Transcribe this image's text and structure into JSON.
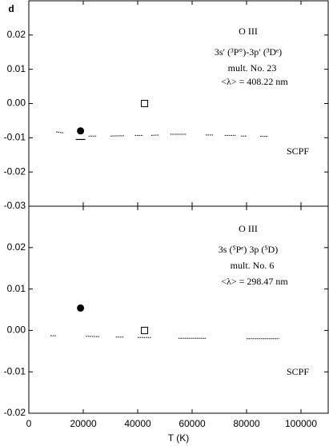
{
  "chart_data": [
    {
      "type": "scatter-line",
      "ylabel": "d",
      "xlim": [
        0,
        110000
      ],
      "xticks": [
        0,
        20000,
        40000,
        60000,
        80000,
        100000
      ],
      "ylim": [
        -0.03,
        0.03
      ],
      "yticks": [
        -0.03,
        -0.02,
        -0.01,
        {
          "value": 0,
          "label": "0.00"
        },
        0.01,
        0.02
      ],
      "annotations": [
        "O III",
        "3s′ (³P°)-3p′ (³Dᵉ)",
        "mult. No. 23",
        "<λ> = 408.22 nm"
      ],
      "series": [
        {
          "marker": "circle",
          "color": "#000",
          "x": [
            19000
          ],
          "values": [
            -0.008
          ]
        },
        {
          "marker": "dash",
          "color": "#000",
          "x": [
            19000
          ],
          "values": [
            -0.0105
          ]
        },
        {
          "marker": "square",
          "color": "#000",
          "x": [
            42500
          ],
          "values": [
            0.0
          ]
        },
        {
          "name": "SCPF",
          "marker": "dotted",
          "color": "#000",
          "x": [
            10000,
            13000,
            13000,
            22000,
            25000,
            25000,
            30000,
            35000,
            35000,
            39000,
            42000,
            42000,
            45000,
            48000,
            48000,
            52000,
            58000,
            58000,
            65000,
            68000,
            68000,
            72000,
            76000,
            76000,
            78000,
            80000,
            80000,
            85000,
            88000
          ],
          "values": [
            -0.0083,
            -0.0086,
            null,
            -0.0095,
            -0.0095,
            null,
            -0.0095,
            -0.0094,
            null,
            -0.0093,
            -0.0093,
            null,
            -0.0093,
            -0.0092,
            null,
            -0.009,
            -0.009,
            null,
            -0.0092,
            -0.0092,
            null,
            -0.0093,
            -0.0093,
            null,
            -0.0095,
            -0.0095,
            null,
            -0.0096,
            -0.0096
          ]
        }
      ]
    },
    {
      "type": "scatter-line",
      "xlabel": "T (K)",
      "xlim": [
        0,
        110000
      ],
      "xticks": [
        0,
        20000,
        40000,
        60000,
        80000,
        100000
      ],
      "ylim": [
        -0.02,
        0.03
      ],
      "yticks": [
        -0.02,
        -0.01,
        {
          "value": 0,
          "label": "0.00"
        },
        0.01,
        0.02
      ],
      "annotations": [
        "O III",
        "3s (⁵Pᵉ) 3p (⁵D)",
        "mult. No. 6",
        "<λ> = 298.47 nm"
      ],
      "series": [
        {
          "marker": "circle",
          "color": "#000",
          "x": [
            19000
          ],
          "values": [
            0.0054
          ]
        },
        {
          "marker": "square",
          "color": "#000",
          "x": [
            42500
          ],
          "values": [
            0.0
          ]
        },
        {
          "name": "SCPF",
          "marker": "dotted",
          "color": "#000",
          "x": [
            8000,
            10000,
            10000,
            21000,
            26000,
            26000,
            32000,
            35000,
            35000,
            40000,
            45000,
            45000,
            55000,
            65000,
            65000,
            80000,
            92000
          ],
          "values": [
            -0.0013,
            -0.0013,
            null,
            -0.0014,
            -0.0015,
            null,
            -0.0016,
            -0.0016,
            null,
            -0.0017,
            -0.0017,
            null,
            -0.0019,
            -0.0019,
            null,
            -0.002,
            -0.002
          ]
        }
      ]
    }
  ]
}
